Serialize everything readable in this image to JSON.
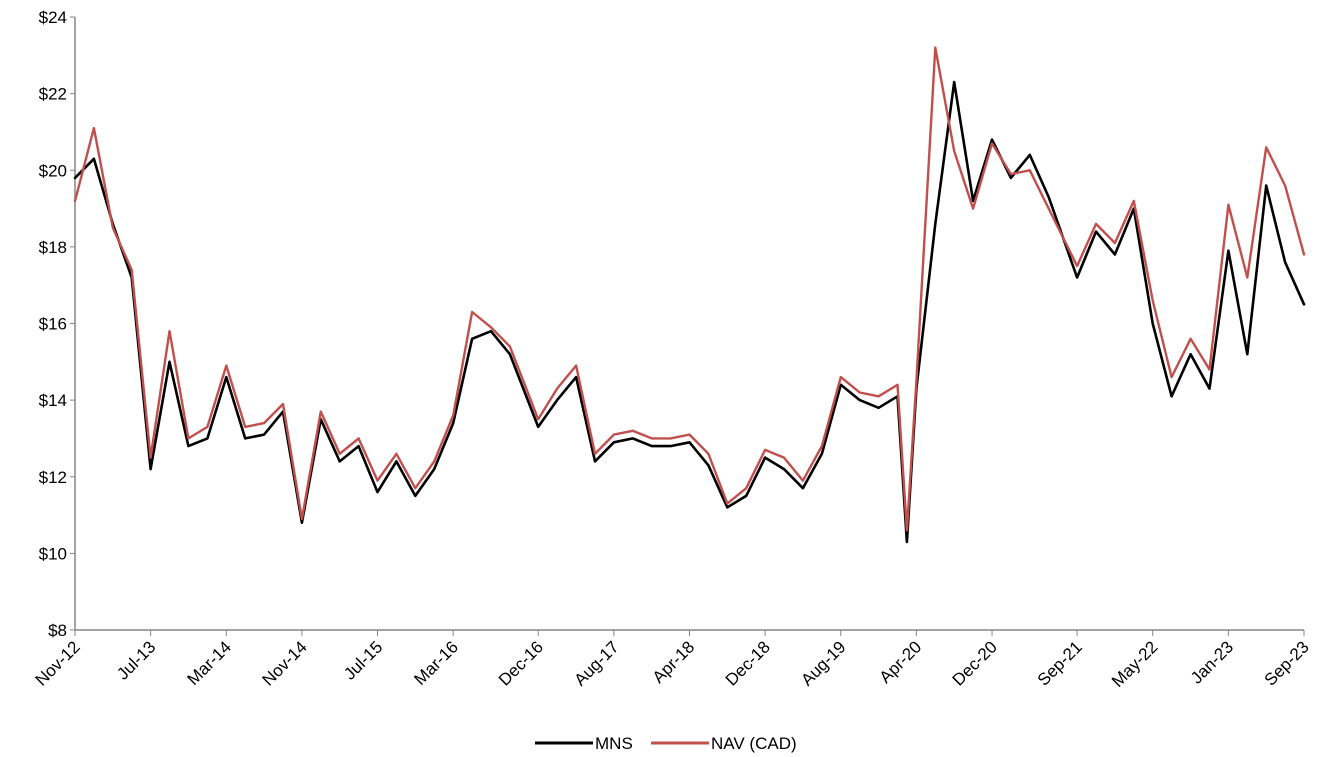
{
  "chart_data": {
    "type": "line",
    "title": "",
    "xlabel": "",
    "ylabel": "",
    "ylim": [
      8,
      24
    ],
    "y_ticks": [
      "$8",
      "$10",
      "$12",
      "$14",
      "$16",
      "$18",
      "$20",
      "$22",
      "$24"
    ],
    "y_tick_values": [
      8,
      10,
      12,
      14,
      16,
      18,
      20,
      22,
      24
    ],
    "x_range": [
      "2012-11",
      "2023-09"
    ],
    "x_ticks": [
      "Nov-12",
      "Jul-13",
      "Mar-14",
      "Nov-14",
      "Jul-15",
      "Mar-16",
      "Dec-16",
      "Aug-17",
      "Apr-18",
      "Dec-18",
      "Aug-19",
      "Apr-20",
      "Dec-20",
      "Sep-21",
      "May-22",
      "Jan-23",
      "Sep-23"
    ],
    "x_tick_dates": [
      "2012-11",
      "2013-07",
      "2014-03",
      "2014-11",
      "2015-07",
      "2016-03",
      "2016-12",
      "2017-08",
      "2018-04",
      "2018-12",
      "2019-08",
      "2020-04",
      "2020-12",
      "2021-09",
      "2022-05",
      "2023-01",
      "2023-09"
    ],
    "grid": false,
    "legend_position": "bottom-center",
    "x": [
      "2012-11",
      "2013-01",
      "2013-03",
      "2013-05",
      "2013-07",
      "2013-09",
      "2013-11",
      "2014-01",
      "2014-03",
      "2014-05",
      "2014-07",
      "2014-09",
      "2014-11",
      "2015-01",
      "2015-03",
      "2015-05",
      "2015-07",
      "2015-09",
      "2015-11",
      "2016-01",
      "2016-03",
      "2016-05",
      "2016-07",
      "2016-09",
      "2016-12",
      "2017-02",
      "2017-04",
      "2017-06",
      "2017-08",
      "2017-10",
      "2017-12",
      "2018-02",
      "2018-04",
      "2018-06",
      "2018-08",
      "2018-10",
      "2018-12",
      "2019-02",
      "2019-04",
      "2019-06",
      "2019-08",
      "2019-10",
      "2019-12",
      "2020-02",
      "2020-03",
      "2020-04",
      "2020-06",
      "2020-08",
      "2020-10",
      "2020-12",
      "2021-02",
      "2021-04",
      "2021-06",
      "2021-09",
      "2021-11",
      "2022-01",
      "2022-03",
      "2022-05",
      "2022-07",
      "2022-09",
      "2022-11",
      "2023-01",
      "2023-03",
      "2023-05",
      "2023-07",
      "2023-09"
    ],
    "series": [
      {
        "name": "MNS",
        "color": "#000000",
        "values": [
          19.8,
          20.3,
          18.6,
          17.2,
          12.2,
          15.0,
          12.8,
          13.0,
          14.6,
          13.0,
          13.1,
          13.7,
          10.8,
          13.5,
          12.4,
          12.8,
          11.6,
          12.4,
          11.5,
          12.2,
          13.4,
          15.6,
          15.8,
          15.2,
          13.3,
          14.0,
          14.6,
          12.4,
          12.9,
          13.0,
          12.8,
          12.8,
          12.9,
          12.3,
          11.2,
          11.5,
          12.5,
          12.2,
          11.7,
          12.6,
          14.4,
          14.0,
          13.8,
          14.1,
          10.3,
          14.3,
          18.6,
          22.3,
          19.2,
          20.8,
          19.8,
          20.4,
          19.3,
          17.2,
          18.4,
          17.8,
          19.0,
          16.0,
          14.1,
          15.2,
          14.3,
          17.9,
          15.2,
          19.6,
          17.6,
          16.5
        ]
      },
      {
        "name": "NAV (CAD)",
        "color": "#c0504d",
        "values": [
          19.2,
          21.1,
          18.5,
          17.4,
          12.5,
          15.8,
          13.0,
          13.3,
          14.9,
          13.3,
          13.4,
          13.9,
          10.9,
          13.7,
          12.6,
          13.0,
          11.9,
          12.6,
          11.7,
          12.4,
          13.6,
          16.3,
          15.9,
          15.4,
          13.5,
          14.3,
          14.9,
          12.6,
          13.1,
          13.2,
          13.0,
          13.0,
          13.1,
          12.6,
          11.3,
          11.7,
          12.7,
          12.5,
          11.9,
          12.8,
          14.6,
          14.2,
          14.1,
          14.4,
          10.6,
          14.5,
          23.2,
          20.5,
          19.0,
          20.7,
          19.9,
          20.0,
          19.0,
          17.5,
          18.6,
          18.1,
          19.2,
          16.6,
          14.6,
          15.6,
          14.8,
          19.1,
          17.2,
          20.6,
          19.6,
          17.8
        ]
      }
    ]
  }
}
